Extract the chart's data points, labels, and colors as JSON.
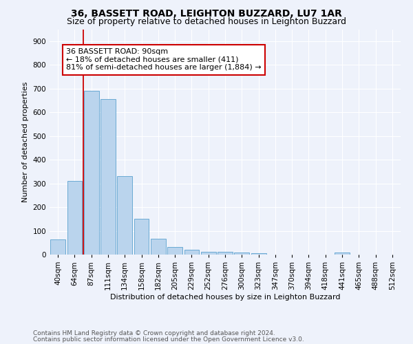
{
  "title": "36, BASSETT ROAD, LEIGHTON BUZZARD, LU7 1AR",
  "subtitle": "Size of property relative to detached houses in Leighton Buzzard",
  "xlabel": "Distribution of detached houses by size in Leighton Buzzard",
  "ylabel": "Number of detached properties",
  "footnote1": "Contains HM Land Registry data © Crown copyright and database right 2024.",
  "footnote2": "Contains public sector information licensed under the Open Government Licence v3.0.",
  "bar_labels": [
    "40sqm",
    "64sqm",
    "87sqm",
    "111sqm",
    "134sqm",
    "158sqm",
    "182sqm",
    "205sqm",
    "229sqm",
    "252sqm",
    "276sqm",
    "300sqm",
    "323sqm",
    "347sqm",
    "370sqm",
    "394sqm",
    "418sqm",
    "441sqm",
    "465sqm",
    "488sqm",
    "512sqm"
  ],
  "bar_values": [
    65,
    310,
    690,
    655,
    330,
    152,
    67,
    32,
    20,
    13,
    13,
    9,
    7,
    0,
    0,
    0,
    0,
    10,
    0,
    0,
    0
  ],
  "bar_color": "#bad4ed",
  "bar_edge_color": "#6aaad4",
  "annotation_box_text": "36 BASSETT ROAD: 90sqm\n← 18% of detached houses are smaller (411)\n81% of semi-detached houses are larger (1,884) →",
  "vline_color": "#cc0000",
  "box_edge_color": "#cc0000",
  "ylim": [
    0,
    950
  ],
  "yticks": [
    0,
    100,
    200,
    300,
    400,
    500,
    600,
    700,
    800,
    900
  ],
  "bg_color": "#eef2fb",
  "grid_color": "#ffffff",
  "title_fontsize": 10,
  "subtitle_fontsize": 9,
  "axis_label_fontsize": 8,
  "tick_fontsize": 7.5,
  "footnote_fontsize": 6.5,
  "annotation_fontsize": 8
}
